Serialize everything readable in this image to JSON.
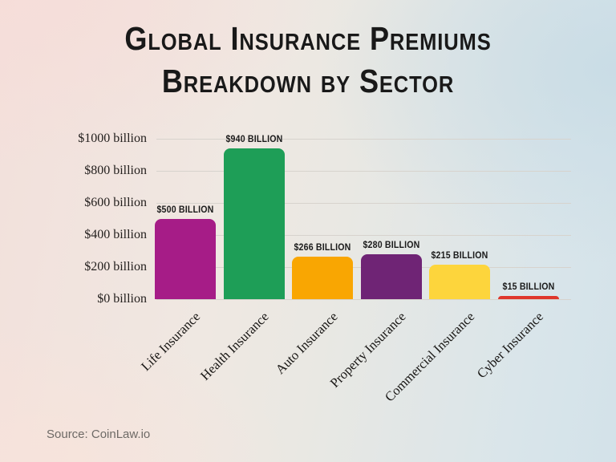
{
  "title": {
    "line1": "Global Insurance Premiums",
    "line2": "Breakdown by Sector"
  },
  "source": "Source: CoinLaw.io",
  "chart_data": {
    "type": "bar",
    "title": "Global Insurance Premiums Breakdown by Sector",
    "categories": [
      "Life Insurance",
      "Health Insurance",
      "Auto Insurance",
      "Property Insurance",
      "Commercial Insurance",
      "Cyber Insurance"
    ],
    "values": [
      500,
      940,
      266,
      280,
      215,
      15
    ],
    "value_labels": [
      "$500 BILLION",
      "$940 BILLION",
      "$266 BILLION",
      "$280 BILLION",
      "$215 BILLION",
      "$15 BILLION"
    ],
    "bar_colors": [
      "#a61c87",
      "#1e9e57",
      "#f9a602",
      "#6f2475",
      "#fdd53c",
      "#df372c"
    ],
    "xlabel": "",
    "ylabel": "",
    "ylim": [
      0,
      1000
    ],
    "ytick_values": [
      0,
      200,
      400,
      600,
      800,
      1000
    ],
    "ytick_labels": [
      "$0 billion",
      "$200 billion",
      "$400 billion",
      "$600 billion",
      "$800 billion",
      "$1000 billion"
    ],
    "grid": true,
    "legend": false,
    "source": "Source: CoinLaw.io"
  },
  "colors": {
    "gridline": "#d7d3cd",
    "title": "#191919",
    "tick_text": "#24201e",
    "source_text": "#6e6a66"
  }
}
